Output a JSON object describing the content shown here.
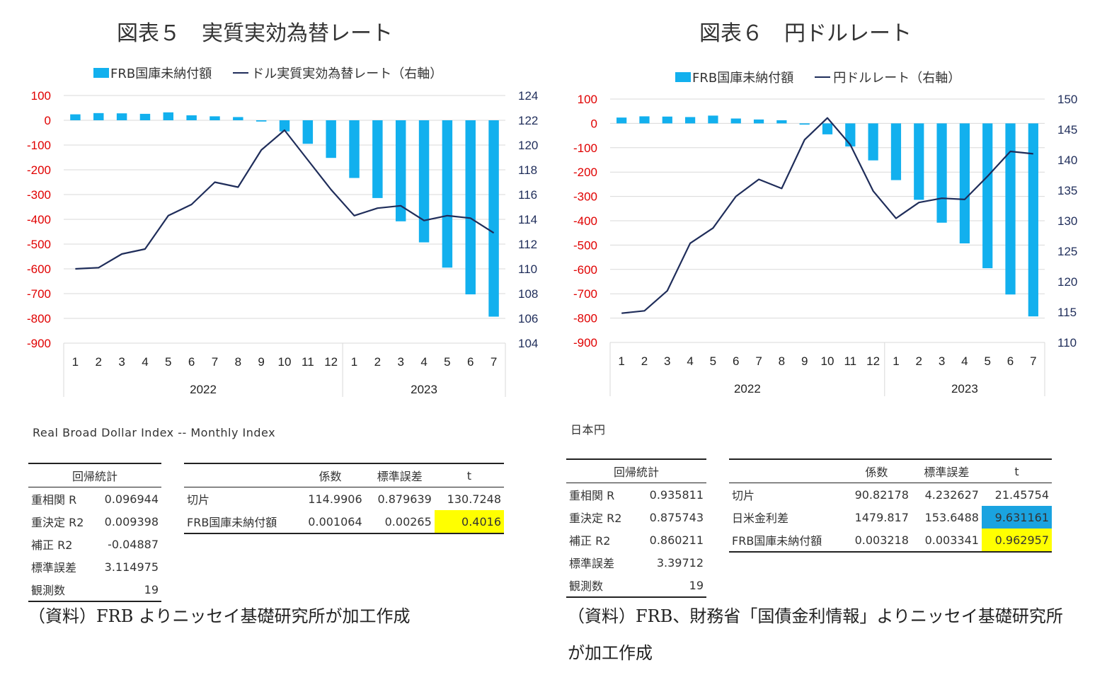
{
  "colors": {
    "bar": "#12b0ee",
    "line": "#1f2d5a",
    "left_axis": "#e00000",
    "right_axis": "#1f2d5a",
    "grid": "#d9d9d9",
    "highlight_yellow": "#ffff00",
    "highlight_blue": "#1aa3e0"
  },
  "left": {
    "title": "図表５　実質実効為替レート",
    "legend_bar": "FRB国庫未納付額",
    "legend_line": "ドル実質実効為替レート（右軸）",
    "source_title": "Real Broad Dollar Index -- Monthly Index",
    "reg": {
      "header": "回帰統計",
      "rows": [
        {
          "label": "重相関 R",
          "value": "0.096944"
        },
        {
          "label": "重決定 R2",
          "value": "0.009398"
        },
        {
          "label": "補正 R2",
          "value": "-0.04887"
        },
        {
          "label": "標準誤差",
          "value": "3.114975"
        },
        {
          "label": "観測数",
          "value": "19"
        }
      ]
    },
    "coef": {
      "headers": [
        "",
        "係数",
        "標準誤差",
        "t"
      ],
      "rows": [
        {
          "label": "切片",
          "coef": "114.9906",
          "se": "0.879639",
          "t": "130.7248"
        },
        {
          "label": "FRB国庫未納付額",
          "coef": "0.001064",
          "se": "0.00265",
          "t": "0.4016"
        }
      ]
    },
    "note": "（資料）FRB よりニッセイ基礎研究所が加工作成"
  },
  "right": {
    "title": "図表６　円ドルレート",
    "legend_bar": "FRB国庫未納付額",
    "legend_line": "円ドルレート（右軸）",
    "source_title": "日本円",
    "reg": {
      "header": "回帰統計",
      "rows": [
        {
          "label": "重相関 R",
          "value": "0.935811"
        },
        {
          "label": "重決定 R2",
          "value": "0.875743"
        },
        {
          "label": "補正 R2",
          "value": "0.860211"
        },
        {
          "label": "標準誤差",
          "value": "3.39712"
        },
        {
          "label": "観測数",
          "value": "19"
        }
      ]
    },
    "coef": {
      "headers": [
        "",
        "係数",
        "標準誤差",
        "t"
      ],
      "rows": [
        {
          "label": "切片",
          "coef": "90.82178",
          "se": "4.232627",
          "t": "21.45754"
        },
        {
          "label": "日米金利差",
          "coef": "1479.817",
          "se": "153.6488",
          "t": "9.631161"
        },
        {
          "label": "FRB国庫未納付額",
          "coef": "0.003218",
          "se": "0.003341",
          "t": "0.962957"
        }
      ]
    },
    "note": "（資料）FRB、財務省「国債金利情報」よりニッセイ基礎研究所が加工作成"
  },
  "chart_data": [
    {
      "type": "bar+line",
      "title": "図表５　実質実効為替レート",
      "categories": [
        "1",
        "2",
        "3",
        "4",
        "5",
        "6",
        "7",
        "8",
        "9",
        "10",
        "11",
        "12",
        "1",
        "2",
        "3",
        "4",
        "5",
        "6",
        "7"
      ],
      "year_labels": [
        {
          "label": "2022",
          "from": 0,
          "to": 11
        },
        {
          "label": "2023",
          "from": 12,
          "to": 18
        }
      ],
      "series": [
        {
          "name": "FRB国庫未納付額",
          "type": "bar",
          "axis": "left",
          "values": [
            24,
            29,
            28,
            26,
            32,
            20,
            16,
            13,
            -5,
            -45,
            -95,
            -152,
            -233,
            -314,
            -408,
            -493,
            -595,
            -703,
            -793
          ]
        },
        {
          "name": "ドル実質実効為替レート（右軸）",
          "type": "line",
          "axis": "right",
          "values": [
            110.0,
            110.1,
            111.2,
            111.6,
            114.3,
            115.2,
            117.0,
            116.6,
            119.6,
            121.2,
            118.8,
            116.4,
            114.3,
            114.9,
            115.1,
            113.9,
            114.3,
            114.1,
            112.9
          ]
        }
      ],
      "y_left": {
        "min": -900,
        "max": 100,
        "ticks": [
          "100",
          "0",
          "-100",
          "-200",
          "-300",
          "-400",
          "-500",
          "-600",
          "-700",
          "-800",
          "-900"
        ]
      },
      "y_right": {
        "min": 104,
        "max": 124,
        "ticks": [
          "124",
          "122",
          "120",
          "118",
          "116",
          "114",
          "112",
          "110",
          "108",
          "106",
          "104"
        ]
      },
      "legend": "top"
    },
    {
      "type": "bar+line",
      "title": "図表６　円ドルレート",
      "categories": [
        "1",
        "2",
        "3",
        "4",
        "5",
        "6",
        "7",
        "8",
        "9",
        "10",
        "11",
        "12",
        "1",
        "2",
        "3",
        "4",
        "5",
        "6",
        "7"
      ],
      "year_labels": [
        {
          "label": "2022",
          "from": 0,
          "to": 11
        },
        {
          "label": "2023",
          "from": 12,
          "to": 18
        }
      ],
      "series": [
        {
          "name": "FRB国庫未納付額",
          "type": "bar",
          "axis": "left",
          "values": [
            24,
            29,
            28,
            26,
            32,
            20,
            16,
            13,
            -5,
            -45,
            -95,
            -152,
            -233,
            -314,
            -408,
            -493,
            -595,
            -703,
            -793
          ]
        },
        {
          "name": "円ドルレート（右軸）",
          "type": "line",
          "axis": "right",
          "values": [
            114.8,
            115.2,
            118.5,
            126.3,
            128.8,
            134.0,
            136.8,
            135.3,
            143.3,
            146.9,
            142.5,
            134.9,
            130.4,
            133.0,
            133.7,
            133.5,
            137.3,
            141.4,
            141.0
          ]
        }
      ],
      "y_left": {
        "min": -900,
        "max": 100,
        "ticks": [
          "100",
          "0",
          "-100",
          "-200",
          "-300",
          "-400",
          "-500",
          "-600",
          "-700",
          "-800",
          "-900"
        ]
      },
      "y_right": {
        "min": 110,
        "max": 150,
        "ticks": [
          "150",
          "145",
          "140",
          "135",
          "130",
          "125",
          "120",
          "115",
          "110"
        ]
      },
      "legend": "top"
    }
  ]
}
